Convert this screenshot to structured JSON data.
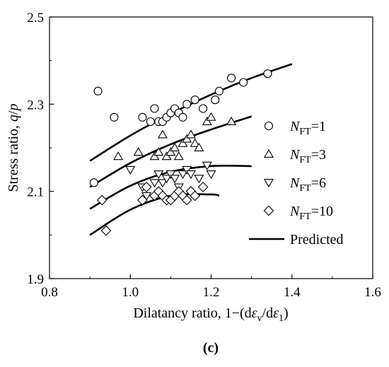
{
  "chart_data": {
    "type": "scatter",
    "title": "",
    "caption": "(c)",
    "xlabel": {
      "prefix": "Dilatancy ratio, 1−(d",
      "eps1": "ε",
      "sub1": "v",
      "mid": "/d",
      "eps2": "ε",
      "sub2": "1",
      "suffix": ")"
    },
    "ylabel": {
      "prefix": "Stress ratio, ",
      "q": "q",
      "slash": "/",
      "p": "p"
    },
    "xlim": [
      0.8,
      1.6
    ],
    "ylim": [
      1.9,
      2.5
    ],
    "xticks": [
      "0.8",
      "1.0",
      "1.2",
      "1.4",
      "1.6"
    ],
    "yticks": [
      "1.9",
      "2.1",
      "2.3",
      "2.5"
    ],
    "grid": false,
    "legend_position": "right",
    "series": [
      {
        "name_main": "N",
        "name_sub": "FT",
        "name_value": "=1",
        "marker": "circle",
        "points": [
          [
            0.91,
            2.12
          ],
          [
            0.92,
            2.33
          ],
          [
            0.96,
            2.27
          ],
          [
            1.03,
            2.27
          ],
          [
            1.05,
            2.26
          ],
          [
            1.06,
            2.29
          ],
          [
            1.07,
            2.26
          ],
          [
            1.08,
            2.26
          ],
          [
            1.09,
            2.27
          ],
          [
            1.1,
            2.28
          ],
          [
            1.11,
            2.29
          ],
          [
            1.12,
            2.28
          ],
          [
            1.13,
            2.27
          ],
          [
            1.14,
            2.3
          ],
          [
            1.16,
            2.31
          ],
          [
            1.18,
            2.29
          ],
          [
            1.21,
            2.31
          ],
          [
            1.22,
            2.33
          ],
          [
            1.25,
            2.36
          ],
          [
            1.28,
            2.35
          ],
          [
            1.34,
            2.37
          ]
        ],
        "fit": [
          [
            0.9,
            2.17
          ],
          [
            1.0,
            2.228
          ],
          [
            1.1,
            2.278
          ],
          [
            1.2,
            2.322
          ],
          [
            1.3,
            2.36
          ],
          [
            1.4,
            2.392
          ]
        ]
      },
      {
        "name_main": "N",
        "name_sub": "FT",
        "name_value": "=3",
        "marker": "triangle-up",
        "points": [
          [
            0.97,
            2.18
          ],
          [
            1.02,
            2.19
          ],
          [
            1.06,
            2.18
          ],
          [
            1.07,
            2.19
          ],
          [
            1.08,
            2.23
          ],
          [
            1.09,
            2.18
          ],
          [
            1.1,
            2.19
          ],
          [
            1.11,
            2.2
          ],
          [
            1.12,
            2.18
          ],
          [
            1.13,
            2.21
          ],
          [
            1.14,
            2.22
          ],
          [
            1.15,
            2.23
          ],
          [
            1.16,
            2.21
          ],
          [
            1.17,
            2.2
          ],
          [
            1.19,
            2.26
          ],
          [
            1.2,
            2.27
          ],
          [
            1.25,
            2.26
          ]
        ],
        "fit": [
          [
            0.9,
            2.11
          ],
          [
            1.0,
            2.165
          ],
          [
            1.1,
            2.208
          ],
          [
            1.2,
            2.242
          ],
          [
            1.3,
            2.272
          ]
        ]
      },
      {
        "name_main": "N",
        "name_sub": "FT",
        "name_value": "=6",
        "marker": "triangle-down",
        "points": [
          [
            1.0,
            2.15
          ],
          [
            1.03,
            2.11
          ],
          [
            1.04,
            2.09
          ],
          [
            1.06,
            2.12
          ],
          [
            1.07,
            2.14
          ],
          [
            1.08,
            2.12
          ],
          [
            1.09,
            2.13
          ],
          [
            1.1,
            2.14
          ],
          [
            1.11,
            2.13
          ],
          [
            1.12,
            2.11
          ],
          [
            1.13,
            2.14
          ],
          [
            1.14,
            2.15
          ],
          [
            1.15,
            2.14
          ],
          [
            1.17,
            2.13
          ],
          [
            1.19,
            2.16
          ],
          [
            1.2,
            2.14
          ]
        ],
        "fit": [
          [
            0.9,
            2.06
          ],
          [
            1.0,
            2.113
          ],
          [
            1.1,
            2.145
          ],
          [
            1.2,
            2.158
          ],
          [
            1.3,
            2.158
          ]
        ]
      },
      {
        "name_main": "N",
        "name_sub": "FT",
        "name_value": "=10",
        "marker": "diamond",
        "points": [
          [
            0.93,
            2.08
          ],
          [
            0.94,
            2.01
          ],
          [
            1.03,
            2.08
          ],
          [
            1.04,
            2.11
          ],
          [
            1.06,
            2.09
          ],
          [
            1.07,
            2.1
          ],
          [
            1.08,
            2.09
          ],
          [
            1.09,
            2.08
          ],
          [
            1.1,
            2.08
          ],
          [
            1.11,
            2.09
          ],
          [
            1.12,
            2.1
          ],
          [
            1.13,
            2.09
          ],
          [
            1.14,
            2.08
          ],
          [
            1.15,
            2.1
          ],
          [
            1.16,
            2.09
          ],
          [
            1.18,
            2.11
          ]
        ],
        "fit": [
          [
            0.9,
            2.0
          ],
          [
            1.0,
            2.058
          ],
          [
            1.1,
            2.09
          ],
          [
            1.2,
            2.093
          ],
          [
            1.22,
            2.09
          ]
        ]
      }
    ],
    "fit_legend": "Predicted",
    "colors": {
      "marker_stroke": "#000000",
      "marker_fill": "#ffffff",
      "line": "#000000"
    }
  }
}
